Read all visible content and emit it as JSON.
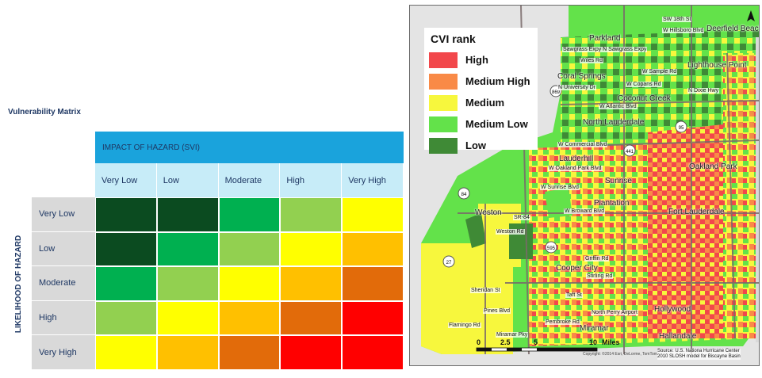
{
  "matrix": {
    "title": "Vulnerability Matrix",
    "impact_header": "IMPACT OF HAZARD (SVI)",
    "likelihood_header": "LIKELIHOOD OF HAZARD",
    "columns": [
      "Very Low",
      "Low",
      "Moderate",
      "High",
      "Very High"
    ],
    "rows": [
      "Very Low",
      "Low",
      "Moderate",
      "High",
      "Very High"
    ],
    "cell_colors": [
      [
        "#0b4b20",
        "#0b4b20",
        "#00b050",
        "#92d050",
        "#ffff00"
      ],
      [
        "#0b4b20",
        "#00b050",
        "#92d050",
        "#ffff00",
        "#ffc000"
      ],
      [
        "#00b050",
        "#92d050",
        "#ffff00",
        "#ffc000",
        "#e26b0a"
      ],
      [
        "#92d050",
        "#ffff00",
        "#ffc000",
        "#e26b0a",
        "#ff0000"
      ],
      [
        "#ffff00",
        "#ffc000",
        "#e26b0a",
        "#ff0000",
        "#ff0000"
      ]
    ]
  },
  "map": {
    "legend": {
      "title": "CVI rank",
      "items": [
        {
          "label": "High",
          "color": "#f2474b"
        },
        {
          "label": "Medium High",
          "color": "#f98a47"
        },
        {
          "label": "Medium",
          "color": "#f7f73d"
        },
        {
          "label": "Medium Low",
          "color": "#63e24a"
        },
        {
          "label": "Low",
          "color": "#3f8a36"
        }
      ]
    },
    "places": [
      "Parkland",
      "Coral Springs",
      "Coconut Creek",
      "North Lauderdale",
      "Lauderhill",
      "Oakland Park",
      "Sunrise",
      "Plantation",
      "Weston",
      "Fort Lauderdale",
      "Cooper City",
      "Hollywood",
      "Miramar",
      "Hallandale",
      "Deerfield Beach",
      "Lighthouse Point"
    ],
    "roads": [
      "SW 18th St",
      "W Hillsboro Blvd",
      "Sawgrass Expy N Sawgrass Expy",
      "Wiles Rd",
      "W Sample Rd",
      "W Copans Rd",
      "W Atlantic Blvd",
      "W Commercial Blvd",
      "W Oakland Park Blvd",
      "W Sunrise Blvd",
      "W Broward Blvd",
      "SR-84",
      "Weston Rd",
      "Griffin Rd",
      "Stirling Rd",
      "Sheridan St",
      "Taft St",
      "Pines Blvd",
      "Pembroke Rd",
      "Miramar Pky",
      "Flamingo Rd",
      "N University Dr",
      "N Dixie Hwy",
      "North Perry Airport"
    ],
    "highway_shields": [
      "869",
      "441",
      "95",
      "84",
      "595",
      "27"
    ],
    "scale": {
      "ticks": [
        "0",
        "2.5",
        "5",
        "10"
      ],
      "unit": "Miles"
    },
    "source_lines": [
      "Source: U.S. Nationa Hurricane Center",
      "2010 SLOSH model for Biscayne Basin"
    ],
    "attribution": "Copyright: ©2014 Esri, DeLorme, TomTom"
  }
}
